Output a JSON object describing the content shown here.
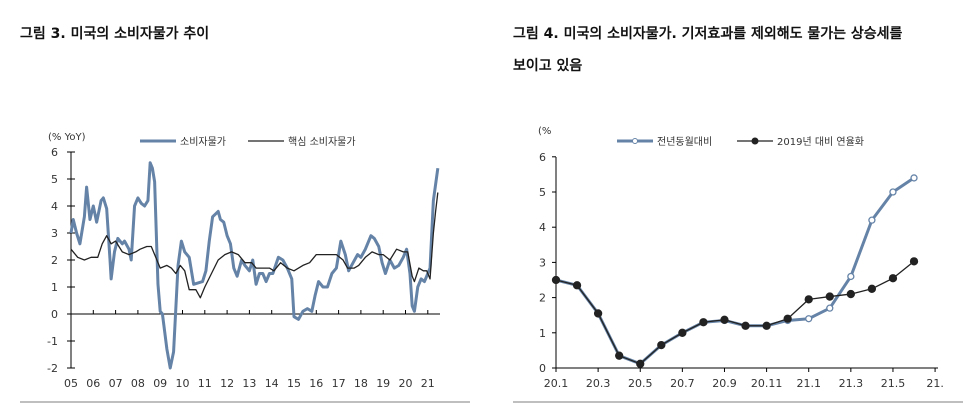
{
  "titles": {
    "left": "그림 3. 미국의 소비자물가 추이",
    "right_line1": "그림 4. 미국의 소비자물가. 기저효과를 제외해도 물가는 상승세를",
    "right_line2": "보이고 있음"
  },
  "colors": {
    "blue": "#6583a7",
    "black": "#222222",
    "divider": "#bfbfbf"
  },
  "chart_data": [
    {
      "type": "line",
      "ylabel": "(% YoY)",
      "ylim": [
        -2,
        6
      ],
      "yticks": [
        -2,
        -1,
        0,
        1,
        2,
        3,
        4,
        5,
        6
      ],
      "xticks": [
        "05",
        "06",
        "07",
        "08",
        "09",
        "10",
        "11",
        "12",
        "13",
        "14",
        "15",
        "16",
        "17",
        "18",
        "19",
        "20",
        "21"
      ],
      "xlim": [
        2005,
        2021.6
      ],
      "legend": "top",
      "series": [
        {
          "name": "소비자물가",
          "color": "#6583a7",
          "x": [
            2005.0,
            2005.1,
            2005.25,
            2005.4,
            2005.6,
            2005.7,
            2005.85,
            2006.0,
            2006.15,
            2006.35,
            2006.45,
            2006.6,
            2006.75,
            2006.8,
            2006.95,
            2007.1,
            2007.3,
            2007.4,
            2007.6,
            2007.7,
            2007.85,
            2008.0,
            2008.15,
            2008.3,
            2008.45,
            2008.55,
            2008.65,
            2008.75,
            2008.9,
            2009.0,
            2009.1,
            2009.3,
            2009.45,
            2009.6,
            2009.8,
            2009.95,
            2010.1,
            2010.3,
            2010.5,
            2010.7,
            2010.9,
            2011.05,
            2011.2,
            2011.35,
            2011.6,
            2011.7,
            2011.85,
            2012.0,
            2012.15,
            2012.3,
            2012.45,
            2012.65,
            2012.8,
            2013.0,
            2013.15,
            2013.3,
            2013.45,
            2013.6,
            2013.75,
            2013.9,
            2014.05,
            2014.3,
            2014.5,
            2014.7,
            2014.9,
            2015.0,
            2015.2,
            2015.4,
            2015.6,
            2015.8,
            2015.95,
            2016.1,
            2016.3,
            2016.5,
            2016.7,
            2016.9,
            2017.1,
            2017.3,
            2017.45,
            2017.65,
            2017.85,
            2018.0,
            2018.2,
            2018.45,
            2018.6,
            2018.8,
            2018.95,
            2019.1,
            2019.3,
            2019.5,
            2019.7,
            2019.9,
            2020.05,
            2020.2,
            2020.3,
            2020.4,
            2020.55,
            2020.7,
            2020.85,
            2020.95,
            2021.1,
            2021.25,
            2021.45
          ],
          "values": [
            3.0,
            3.5,
            3.0,
            2.6,
            3.6,
            4.7,
            3.5,
            4.0,
            3.4,
            4.2,
            4.3,
            3.9,
            2.0,
            1.3,
            2.3,
            2.8,
            2.6,
            2.7,
            2.4,
            2.0,
            4.0,
            4.3,
            4.1,
            4.0,
            4.2,
            5.6,
            5.4,
            4.9,
            1.1,
            0.1,
            0.0,
            -1.3,
            -2.0,
            -1.4,
            1.8,
            2.7,
            2.3,
            2.1,
            1.1,
            1.15,
            1.2,
            1.6,
            2.7,
            3.6,
            3.8,
            3.5,
            3.4,
            2.9,
            2.6,
            1.7,
            1.4,
            2.0,
            1.8,
            1.6,
            2.0,
            1.1,
            1.5,
            1.5,
            1.2,
            1.5,
            1.5,
            2.1,
            2.0,
            1.7,
            1.3,
            -0.1,
            -0.2,
            0.1,
            0.2,
            0.1,
            0.7,
            1.2,
            1.0,
            1.0,
            1.5,
            1.7,
            2.7,
            2.2,
            1.6,
            1.9,
            2.2,
            2.1,
            2.4,
            2.9,
            2.8,
            2.5,
            1.9,
            1.5,
            2.0,
            1.7,
            1.8,
            2.1,
            2.4,
            1.5,
            0.3,
            0.1,
            1.0,
            1.3,
            1.2,
            1.4,
            1.7,
            4.2,
            5.4
          ]
        },
        {
          "name": "핵심 소비자물가",
          "color": "#222222",
          "x": [
            2005.0,
            2005.3,
            2005.6,
            2005.9,
            2006.2,
            2006.4,
            2006.6,
            2006.8,
            2007.0,
            2007.3,
            2007.6,
            2007.9,
            2008.1,
            2008.4,
            2008.6,
            2008.8,
            2009.0,
            2009.3,
            2009.5,
            2009.7,
            2009.9,
            2010.1,
            2010.3,
            2010.6,
            2010.8,
            2011.0,
            2011.3,
            2011.6,
            2011.9,
            2012.2,
            2012.5,
            2012.8,
            2013.1,
            2013.3,
            2013.6,
            2013.9,
            2014.1,
            2014.4,
            2014.7,
            2015.0,
            2015.4,
            2015.7,
            2016.0,
            2016.3,
            2016.6,
            2016.9,
            2017.2,
            2017.4,
            2017.7,
            2017.9,
            2018.2,
            2018.5,
            2018.8,
            2019.0,
            2019.3,
            2019.6,
            2019.9,
            2020.1,
            2020.3,
            2020.4,
            2020.6,
            2020.8,
            2020.95,
            2021.1,
            2021.25,
            2021.35,
            2021.45
          ],
          "values": [
            2.4,
            2.1,
            2.0,
            2.1,
            2.1,
            2.6,
            2.9,
            2.6,
            2.7,
            2.3,
            2.2,
            2.3,
            2.4,
            2.5,
            2.5,
            2.1,
            1.7,
            1.8,
            1.7,
            1.5,
            1.8,
            1.6,
            0.9,
            0.9,
            0.6,
            1.0,
            1.5,
            2.0,
            2.2,
            2.3,
            2.2,
            1.9,
            1.9,
            1.7,
            1.7,
            1.7,
            1.6,
            1.9,
            1.7,
            1.6,
            1.8,
            1.9,
            2.2,
            2.2,
            2.2,
            2.2,
            2.0,
            1.7,
            1.7,
            1.8,
            2.1,
            2.3,
            2.2,
            2.2,
            2.0,
            2.4,
            2.3,
            2.3,
            1.4,
            1.2,
            1.7,
            1.6,
            1.6,
            1.3,
            3.0,
            3.8,
            4.5
          ]
        }
      ]
    },
    {
      "type": "line",
      "ylabel": "(%",
      "ylim": [
        0,
        6
      ],
      "yticks": [
        0,
        1,
        2,
        3,
        4,
        5,
        6
      ],
      "categories": [
        "20.1",
        "20.2",
        "20.3",
        "20.4",
        "20.5",
        "20.6",
        "20.7",
        "20.8",
        "20.9",
        "20.10",
        "20.11",
        "20.12",
        "21.1",
        "21.2",
        "21.3",
        "21.4",
        "21.5",
        "21.6"
      ],
      "xticks": [
        "20.1",
        "20.3",
        "20.5",
        "20.7",
        "20.9",
        "20.11",
        "21.1",
        "21.3",
        "21.5",
        "21."
      ],
      "legend": "top",
      "series": [
        {
          "name": "전년동월대비",
          "color": "#6583a7",
          "marker": "open-circle",
          "values": [
            2.5,
            2.35,
            1.55,
            0.35,
            0.12,
            0.65,
            1.0,
            1.3,
            1.35,
            1.2,
            1.2,
            1.35,
            1.4,
            1.7,
            2.6,
            4.2,
            5.0,
            5.4
          ]
        },
        {
          "name": "2019년 대비 연율화",
          "color": "#222222",
          "marker": "filled-circle",
          "values": [
            2.5,
            2.35,
            1.55,
            0.35,
            0.12,
            0.65,
            1.0,
            1.3,
            1.37,
            1.2,
            1.2,
            1.4,
            1.95,
            2.03,
            2.1,
            2.25,
            2.55,
            3.03
          ]
        }
      ]
    }
  ]
}
